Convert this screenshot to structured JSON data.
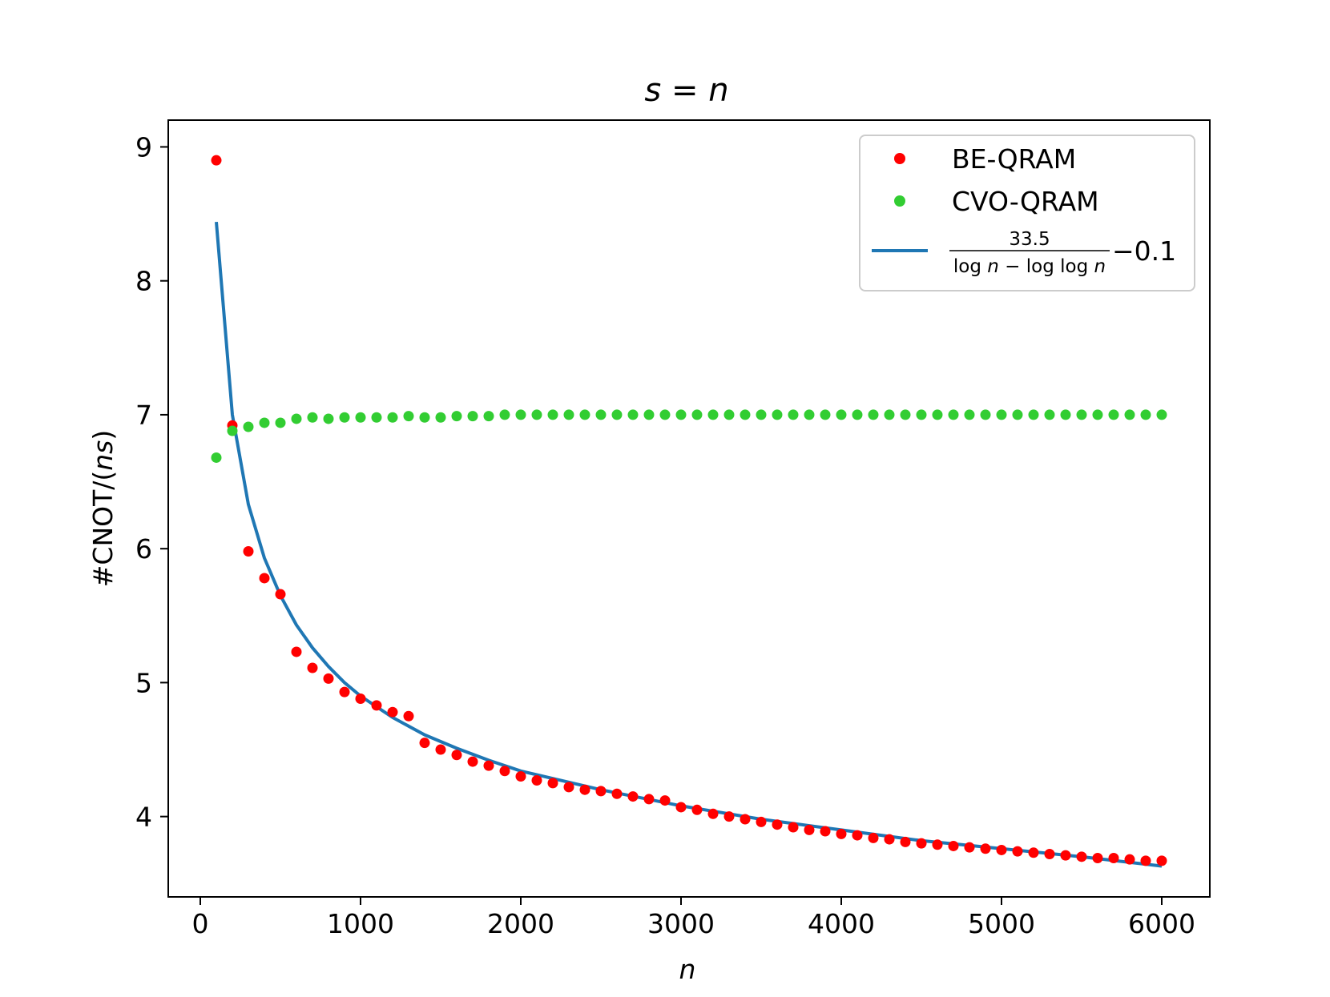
{
  "chart_data": {
    "type": "scatter",
    "title": "s = n",
    "title_parts": {
      "lhs": "s",
      "eq": " = ",
      "rhs": "n"
    },
    "xlabel": "n",
    "ylabel": "#CNOT/(ns)",
    "ylabel_parts": {
      "prefix": "#CNOT/(",
      "var": "ns",
      "suffix": ")"
    },
    "xlim": [
      -200,
      6300
    ],
    "ylim": [
      3.4,
      9.2
    ],
    "xticks": [
      0,
      1000,
      2000,
      3000,
      4000,
      5000,
      6000
    ],
    "xtick_labels": [
      "0",
      "1000",
      "2000",
      "3000",
      "4000",
      "5000",
      "6000"
    ],
    "yticks": [
      4,
      5,
      6,
      7,
      8,
      9
    ],
    "ytick_labels": [
      "4",
      "5",
      "6",
      "7",
      "8",
      "9"
    ],
    "legend_position": "top-right",
    "series": [
      {
        "name": "BE-QRAM",
        "kind": "points",
        "color": "#ff0000",
        "x": [
          100,
          200,
          300,
          400,
          500,
          600,
          700,
          800,
          900,
          1000,
          1100,
          1200,
          1300,
          1400,
          1500,
          1600,
          1700,
          1800,
          1900,
          2000,
          2100,
          2200,
          2300,
          2400,
          2500,
          2600,
          2700,
          2800,
          2900,
          3000,
          3100,
          3200,
          3300,
          3400,
          3500,
          3600,
          3700,
          3800,
          3900,
          4000,
          4100,
          4200,
          4300,
          4400,
          4500,
          4600,
          4700,
          4800,
          4900,
          5000,
          5100,
          5200,
          5300,
          5400,
          5500,
          5600,
          5700,
          5800,
          5900,
          6000
        ],
        "y": [
          8.9,
          6.92,
          5.98,
          5.78,
          5.66,
          5.23,
          5.11,
          5.03,
          4.93,
          4.88,
          4.83,
          4.78,
          4.75,
          4.55,
          4.5,
          4.46,
          4.41,
          4.38,
          4.34,
          4.3,
          4.27,
          4.25,
          4.22,
          4.2,
          4.19,
          4.17,
          4.15,
          4.13,
          4.12,
          4.07,
          4.05,
          4.02,
          4.0,
          3.98,
          3.96,
          3.94,
          3.92,
          3.9,
          3.89,
          3.87,
          3.86,
          3.84,
          3.83,
          3.81,
          3.8,
          3.79,
          3.78,
          3.77,
          3.76,
          3.75,
          3.74,
          3.73,
          3.72,
          3.71,
          3.7,
          3.69,
          3.69,
          3.68,
          3.67,
          3.67
        ]
      },
      {
        "name": "CVO-QRAM",
        "kind": "points",
        "color": "#32cd32",
        "x": [
          100,
          200,
          300,
          400,
          500,
          600,
          700,
          800,
          900,
          1000,
          1100,
          1200,
          1300,
          1400,
          1500,
          1600,
          1700,
          1800,
          1900,
          2000,
          2100,
          2200,
          2300,
          2400,
          2500,
          2600,
          2700,
          2800,
          2900,
          3000,
          3100,
          3200,
          3300,
          3400,
          3500,
          3600,
          3700,
          3800,
          3900,
          4000,
          4100,
          4200,
          4300,
          4400,
          4500,
          4600,
          4700,
          4800,
          4900,
          5000,
          5100,
          5200,
          5300,
          5400,
          5500,
          5600,
          5700,
          5800,
          5900,
          6000
        ],
        "y": [
          6.68,
          6.88,
          6.91,
          6.94,
          6.94,
          6.97,
          6.98,
          6.97,
          6.98,
          6.98,
          6.98,
          6.98,
          6.99,
          6.98,
          6.98,
          6.99,
          6.99,
          6.99,
          7.0,
          7.0,
          7.0,
          7.0,
          7.0,
          7.0,
          7.0,
          7.0,
          7.0,
          7.0,
          7.0,
          7.0,
          7.0,
          7.0,
          7.0,
          7.0,
          7.0,
          7.0,
          7.0,
          7.0,
          7.0,
          7.0,
          7.0,
          7.0,
          7.0,
          7.0,
          7.0,
          7.0,
          7.0,
          7.0,
          7.0,
          7.0,
          7.0,
          7.0,
          7.0,
          7.0,
          7.0,
          7.0,
          7.0,
          7.0,
          7.0,
          7.0
        ]
      },
      {
        "name": "33.5/(log n − log log n) − 0.1",
        "kind": "line",
        "color": "#1f77b4",
        "x": [
          100,
          200,
          300,
          400,
          500,
          600,
          700,
          800,
          900,
          1000,
          1200,
          1400,
          1600,
          1800,
          2000,
          2500,
          3000,
          3500,
          4000,
          4500,
          5000,
          5500,
          6000
        ],
        "y": [
          8.44,
          7.0,
          6.33,
          5.93,
          5.65,
          5.43,
          5.26,
          5.12,
          5.0,
          4.9,
          4.74,
          4.61,
          4.51,
          4.42,
          4.34,
          4.2,
          4.08,
          3.98,
          3.9,
          3.82,
          3.76,
          3.7,
          3.63
        ]
      }
    ],
    "legend_formula": {
      "numerator": "33.5",
      "denominator": "log n − log log n",
      "denominator_parts": [
        "log ",
        "n",
        " − log log ",
        "n"
      ],
      "suffix": "−0.1"
    }
  }
}
